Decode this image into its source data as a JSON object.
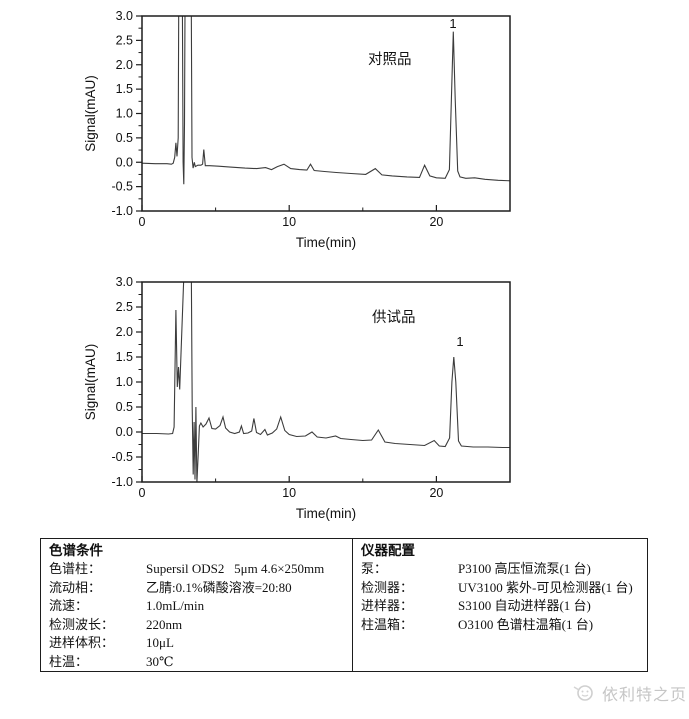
{
  "chart_data": [
    {
      "type": "line",
      "sample_label": "对照品",
      "peak_label": "1",
      "peak": {
        "time_min": 21.15,
        "height_mAU": 2.7
      },
      "xlabel": "Time(min)",
      "ylabel": "Signal(mAU)",
      "xlim": [
        0,
        25
      ],
      "ylim": [
        -1.0,
        3.0
      ],
      "x_major_ticks": [
        0,
        10,
        20
      ],
      "x_minor_ticks": [
        5,
        15,
        25
      ],
      "y_major_ticks": [
        3.0,
        2.5,
        2.0,
        1.5,
        1.0,
        0.5,
        0.0,
        -0.5,
        -1.0
      ],
      "y_minor_ticks": [
        2.75,
        2.25,
        1.75,
        1.25,
        0.75,
        0.25,
        -0.25,
        -0.75
      ],
      "grid": false,
      "line_color": "#3c3c3c",
      "series": [
        {
          "name": "对照品",
          "points": [
            [
              0,
              -0.02
            ],
            [
              0.9,
              -0.03
            ],
            [
              1.7,
              -0.03
            ],
            [
              2.0,
              -0.04
            ],
            [
              2.12,
              -0.02
            ],
            [
              2.22,
              0.1
            ],
            [
              2.3,
              0.4
            ],
            [
              2.38,
              0.12
            ],
            [
              2.46,
              0.5
            ],
            [
              2.5,
              3.6
            ],
            [
              2.74,
              3.6
            ],
            [
              2.79,
              0.0
            ],
            [
              2.84,
              -0.45
            ],
            [
              2.89,
              0.8
            ],
            [
              2.93,
              3.6
            ],
            [
              3.34,
              3.6
            ],
            [
              3.4,
              0.1
            ],
            [
              3.47,
              -0.12
            ],
            [
              3.55,
              0.0
            ],
            [
              3.62,
              -0.09
            ],
            [
              3.8,
              -0.06
            ],
            [
              4.0,
              -0.06
            ],
            [
              4.12,
              -0.04
            ],
            [
              4.2,
              0.26
            ],
            [
              4.3,
              -0.07
            ],
            [
              4.6,
              -0.07
            ],
            [
              5.2,
              -0.08
            ],
            [
              6.0,
              -0.1
            ],
            [
              7.0,
              -0.12
            ],
            [
              7.8,
              -0.13
            ],
            [
              8.4,
              -0.11
            ],
            [
              8.8,
              -0.15
            ],
            [
              9.2,
              -0.09
            ],
            [
              9.65,
              -0.04
            ],
            [
              10.1,
              -0.13
            ],
            [
              10.7,
              -0.15
            ],
            [
              11.2,
              -0.16
            ],
            [
              11.45,
              -0.04
            ],
            [
              11.7,
              -0.17
            ],
            [
              12.4,
              -0.19
            ],
            [
              13.2,
              -0.21
            ],
            [
              14.2,
              -0.23
            ],
            [
              15.2,
              -0.25
            ],
            [
              15.85,
              -0.13
            ],
            [
              16.3,
              -0.26
            ],
            [
              17.0,
              -0.28
            ],
            [
              18.0,
              -0.3
            ],
            [
              18.85,
              -0.31
            ],
            [
              19.2,
              -0.06
            ],
            [
              19.55,
              -0.28
            ],
            [
              20.0,
              -0.32
            ],
            [
              20.6,
              -0.33
            ],
            [
              20.88,
              -0.15
            ],
            [
              21.02,
              1.3
            ],
            [
              21.15,
              2.68
            ],
            [
              21.28,
              1.3
            ],
            [
              21.45,
              -0.18
            ],
            [
              21.6,
              -0.3
            ],
            [
              22.0,
              -0.33
            ],
            [
              22.6,
              -0.32
            ],
            [
              23.3,
              -0.35
            ],
            [
              24.2,
              -0.37
            ],
            [
              25,
              -0.38
            ]
          ]
        }
      ]
    },
    {
      "type": "line",
      "sample_label": "供试品",
      "peak_label": "1",
      "peak": {
        "time_min": 21.18,
        "height_mAU": 1.5
      },
      "xlabel": "Time(min)",
      "ylabel": "Signal(mAU)",
      "xlim": [
        0,
        25
      ],
      "ylim": [
        -1.0,
        3.0
      ],
      "x_major_ticks": [
        0,
        10,
        20
      ],
      "x_minor_ticks": [
        5,
        15,
        25
      ],
      "y_major_ticks": [
        3.0,
        2.5,
        2.0,
        1.5,
        1.0,
        0.5,
        0.0,
        -0.5,
        -1.0
      ],
      "y_minor_ticks": [
        2.75,
        2.25,
        1.75,
        1.25,
        0.75,
        0.25,
        -0.25,
        -0.75
      ],
      "grid": false,
      "line_color": "#3c3c3c",
      "series": [
        {
          "name": "供试品",
          "points": [
            [
              0,
              -0.03
            ],
            [
              1.0,
              -0.03
            ],
            [
              1.8,
              -0.04
            ],
            [
              2.08,
              -0.03
            ],
            [
              2.18,
              0.1
            ],
            [
              2.3,
              2.44
            ],
            [
              2.4,
              0.9
            ],
            [
              2.48,
              1.3
            ],
            [
              2.56,
              0.85
            ],
            [
              2.9,
              3.6
            ],
            [
              3.34,
              3.6
            ],
            [
              3.41,
              0.5
            ],
            [
              3.48,
              -0.85
            ],
            [
              3.54,
              0.2
            ],
            [
              3.6,
              -0.95
            ],
            [
              3.66,
              0.5
            ],
            [
              3.73,
              -1.02
            ],
            [
              3.82,
              -0.45
            ],
            [
              3.9,
              0.12
            ],
            [
              4.0,
              0.18
            ],
            [
              4.15,
              0.1
            ],
            [
              4.35,
              0.16
            ],
            [
              4.55,
              0.28
            ],
            [
              4.75,
              0.07
            ],
            [
              5.0,
              0.06
            ],
            [
              5.3,
              0.13
            ],
            [
              5.5,
              0.3
            ],
            [
              5.68,
              0.08
            ],
            [
              5.95,
              0.0
            ],
            [
              6.3,
              -0.03
            ],
            [
              6.62,
              0.0
            ],
            [
              6.75,
              0.12
            ],
            [
              6.9,
              -0.03
            ],
            [
              7.2,
              -0.02
            ],
            [
              7.45,
              0.02
            ],
            [
              7.6,
              0.27
            ],
            [
              7.78,
              -0.01
            ],
            [
              8.05,
              -0.05
            ],
            [
              8.35,
              0.05
            ],
            [
              8.52,
              -0.06
            ],
            [
              8.85,
              -0.02
            ],
            [
              9.15,
              0.06
            ],
            [
              9.42,
              0.3
            ],
            [
              9.7,
              0.03
            ],
            [
              10.0,
              -0.05
            ],
            [
              10.5,
              -0.09
            ],
            [
              11.1,
              -0.08
            ],
            [
              11.55,
              0.0
            ],
            [
              11.9,
              -0.1
            ],
            [
              12.5,
              -0.12
            ],
            [
              13.15,
              -0.08
            ],
            [
              13.5,
              -0.13
            ],
            [
              14.2,
              -0.15
            ],
            [
              15.0,
              -0.17
            ],
            [
              15.6,
              -0.16
            ],
            [
              16.05,
              0.04
            ],
            [
              16.5,
              -0.2
            ],
            [
              17.2,
              -0.23
            ],
            [
              18.2,
              -0.25
            ],
            [
              19.2,
              -0.27
            ],
            [
              19.85,
              -0.17
            ],
            [
              20.2,
              -0.28
            ],
            [
              20.6,
              -0.29
            ],
            [
              20.9,
              -0.12
            ],
            [
              21.05,
              1.0
            ],
            [
              21.18,
              1.5
            ],
            [
              21.32,
              1.0
            ],
            [
              21.5,
              -0.18
            ],
            [
              21.7,
              -0.28
            ],
            [
              22.5,
              -0.3
            ],
            [
              23.5,
              -0.3
            ],
            [
              24.5,
              -0.31
            ],
            [
              25,
              -0.31
            ]
          ]
        }
      ]
    }
  ],
  "table": {
    "left": {
      "header": "色谱条件",
      "rows": [
        [
          "色谱柱：",
          "Supersil ODS2   5μm 4.6×250mm"
        ],
        [
          "流动相：",
          "乙腈:0.1%磷酸溶液=20:80"
        ],
        [
          "流速：",
          "1.0mL/min"
        ],
        [
          "检测波长：",
          "220nm"
        ],
        [
          "进样体积：",
          "10μL"
        ],
        [
          "柱温：",
          "30℃"
        ]
      ]
    },
    "right": {
      "header": "仪器配置",
      "rows": [
        [
          "泵：",
          "P3100 高压恒流泵(1 台)"
        ],
        [
          "检测器：",
          "UV3100 紫外-可见检测器(1 台)"
        ],
        [
          "进样器：",
          "S3100 自动进样器(1 台)"
        ],
        [
          "柱温箱：",
          "O3100 色谱柱温箱(1 台)"
        ]
      ]
    }
  },
  "watermark": {
    "text": "依利特之页",
    "icon": "magnifier-face-icon",
    "color": "#c6c6c6"
  }
}
